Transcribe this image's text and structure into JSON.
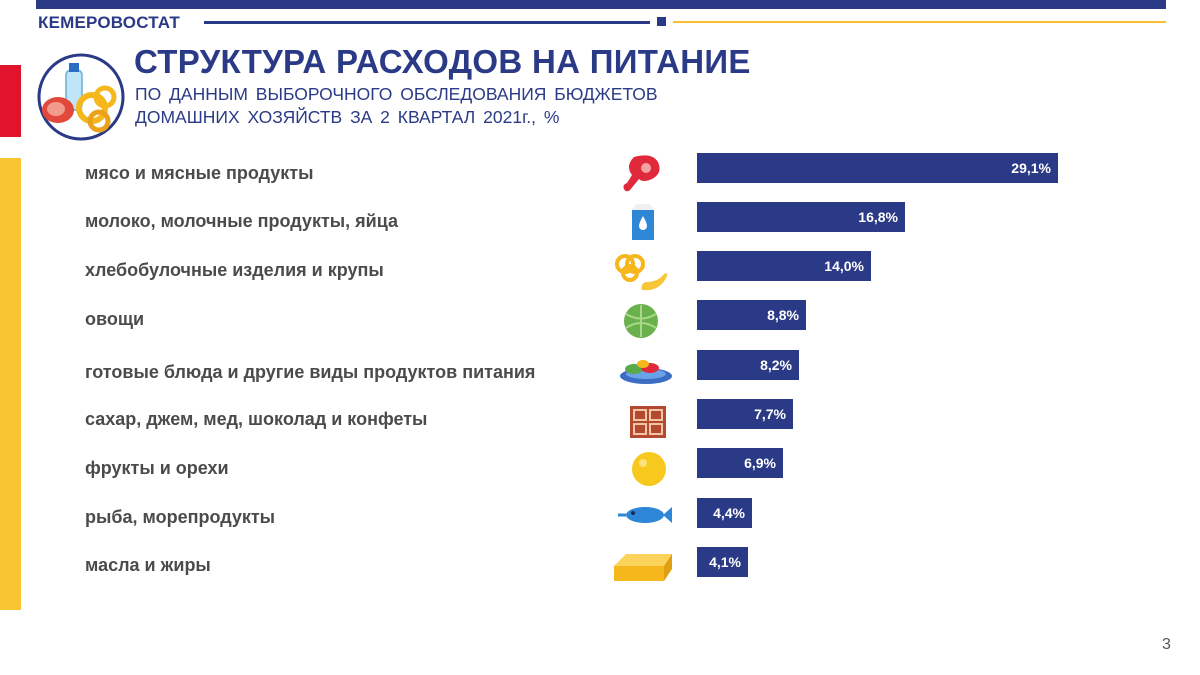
{
  "header": {
    "brand": "КЕМЕРОВОСТАТ",
    "title": "СТРУКТУРА РАСХОДОВ НА ПИТАНИЕ",
    "subtitle_line1": "ПО ДАННЫМ ВЫБОРОЧНОГО ОБСЛЕДОВАНИЯ БЮДЖЕТОВ",
    "subtitle_line2": "ДОМАШНИХ ХОЗЯЙСТВ ЗА 2 КВАРТАЛ 2021г., %"
  },
  "colors": {
    "bar": "#2b3a86",
    "accent_red": "#e0142d",
    "accent_yellow": "#f9c531"
  },
  "chart_data": {
    "type": "bar",
    "orientation": "horizontal",
    "categories": [
      "мясо и мясные продукты",
      "молоко, молочные продукты, яйца",
      "хлебобулочные изделия и крупы",
      "овощи",
      "готовые блюда и другие виды продуктов питания",
      "сахар, джем, мед, шоколад и конфеты",
      "фрукты и орехи",
      "рыба, морепродукты",
      "масла и жиры"
    ],
    "values": [
      29.1,
      16.8,
      14.0,
      8.8,
      8.2,
      7.7,
      6.9,
      4.4,
      4.1
    ],
    "value_labels": [
      "29,1%",
      "16,8%",
      "14,0%",
      "8,8%",
      "8,2%",
      "7,7%",
      "6,9%",
      "4,4%",
      "4,1%"
    ],
    "icons": [
      "meat-icon",
      "milk-carton-icon",
      "pretzel-croissant-icon",
      "cabbage-icon",
      "salad-plate-icon",
      "chocolate-bar-icon",
      "orange-icon",
      "fish-icon",
      "butter-icon"
    ],
    "xlim": [
      0,
      30
    ],
    "grid": false,
    "legend": "none"
  },
  "page_number": "3"
}
